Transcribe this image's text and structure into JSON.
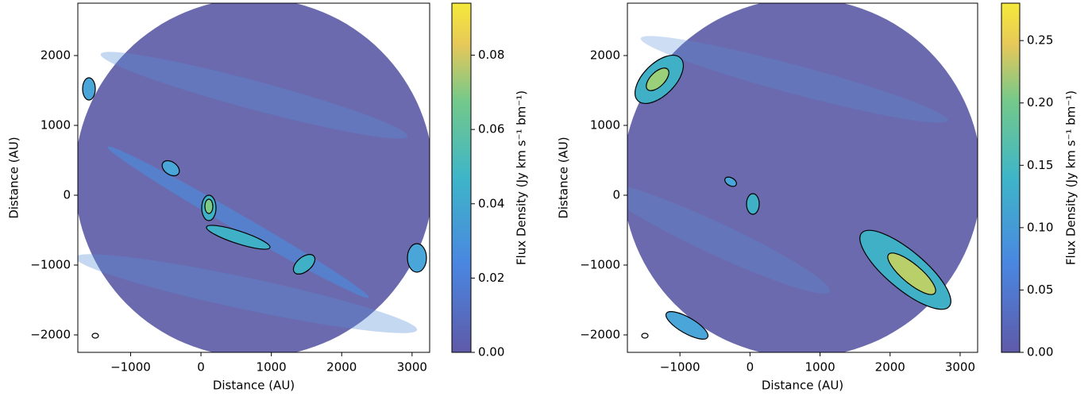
{
  "chart_data": [
    {
      "type": "image",
      "xlabel": "Distance (AU)",
      "ylabel": "Distance (AU)",
      "xlim": [
        -1750,
        3250
      ],
      "ylim": [
        -2250,
        2750
      ],
      "xticks": [
        {
          "value": -1000,
          "label": "−1000"
        },
        0,
        1000,
        2000,
        3000
      ],
      "yticks": [
        {
          "value": -2000,
          "label": "−2000"
        },
        {
          "value": -1000,
          "label": "−1000"
        },
        0,
        1000,
        2000
      ],
      "colorbar": {
        "label": "Flux Density (Jy km s⁻¹ bm⁻¹)",
        "lim": [
          0,
          0.094
        ],
        "ticks": [
          {
            "value": 0,
            "label": "0.00"
          },
          {
            "value": 0.02,
            "label": "0.02"
          },
          {
            "value": 0.04,
            "label": "0.04"
          },
          {
            "value": 0.06,
            "label": "0.06"
          },
          {
            "value": 0.08,
            "label": "0.08"
          }
        ]
      }
    },
    {
      "type": "image",
      "xlabel": "Distance (AU)",
      "ylabel": "Distance (AU)",
      "xlim": [
        -1750,
        3250
      ],
      "ylim": [
        -2250,
        2750
      ],
      "xticks": [
        {
          "value": -1000,
          "label": "−1000"
        },
        0,
        1000,
        2000,
        3000
      ],
      "yticks": [
        {
          "value": -2000,
          "label": "−2000"
        },
        {
          "value": -1000,
          "label": "−1000"
        },
        0,
        1000,
        2000
      ],
      "colorbar": {
        "label": "Flux Density (Jy km s⁻¹ bm⁻¹)",
        "lim": [
          0,
          0.28
        ],
        "ticks": [
          {
            "value": 0,
            "label": "0.00"
          },
          {
            "value": 0.05,
            "label": "0.05"
          },
          {
            "value": 0.1,
            "label": "0.10"
          },
          {
            "value": 0.15,
            "label": "0.15"
          },
          {
            "value": 0.2,
            "label": "0.20"
          },
          {
            "value": 0.25,
            "label": "0.25"
          }
        ]
      }
    }
  ]
}
